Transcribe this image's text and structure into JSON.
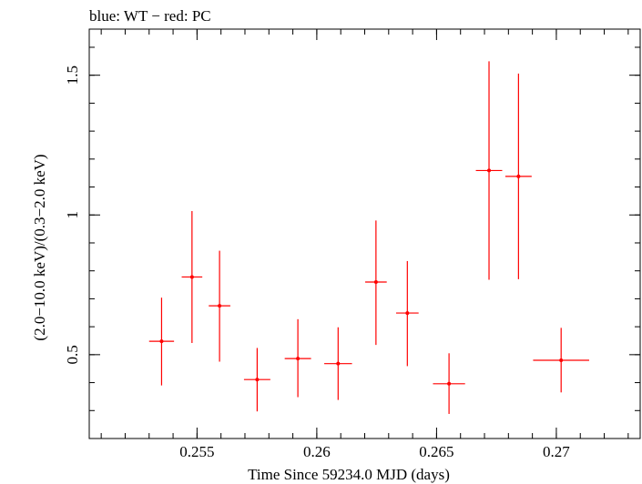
{
  "header": {
    "title": "blue: WT − red: PC"
  },
  "chart_data": {
    "type": "scatter",
    "title": "blue: WT − red: PC",
    "xlabel": "Time Since 59234.0 MJD (days)",
    "ylabel": "(2.0−10.0 keV)/(0.3−2.0 keV)",
    "xlim": [
      0.2505,
      0.2735
    ],
    "ylim": [
      0.2,
      1.665
    ],
    "x_ticks": [
      {
        "value": 0.255,
        "label": "0.255"
      },
      {
        "value": 0.26,
        "label": "0.26"
      },
      {
        "value": 0.265,
        "label": "0.265"
      },
      {
        "value": 0.27,
        "label": "0.27"
      }
    ],
    "y_ticks": [
      {
        "value": 0.5,
        "label": "0.5"
      },
      {
        "value": 1.0,
        "label": "1"
      },
      {
        "value": 1.5,
        "label": "1.5"
      }
    ],
    "grid": false,
    "series": [
      {
        "name": "PC",
        "color": "#ff0000",
        "points": [
          {
            "x": 0.25352,
            "xerr": 0.00052,
            "y": 0.548,
            "ylo": 0.39,
            "yhi": 0.704
          },
          {
            "x": 0.25479,
            "xerr": 0.00043,
            "y": 0.778,
            "ylo": 0.542,
            "yhi": 1.014
          },
          {
            "x": 0.25594,
            "xerr": 0.00045,
            "y": 0.675,
            "ylo": 0.475,
            "yhi": 0.872
          },
          {
            "x": 0.25751,
            "xerr": 0.00055,
            "y": 0.411,
            "ylo": 0.297,
            "yhi": 0.524
          },
          {
            "x": 0.25921,
            "xerr": 0.00055,
            "y": 0.486,
            "ylo": 0.348,
            "yhi": 0.627
          },
          {
            "x": 0.26089,
            "xerr": 0.00058,
            "y": 0.468,
            "ylo": 0.338,
            "yhi": 0.598
          },
          {
            "x": 0.26247,
            "xerr": 0.00045,
            "y": 0.76,
            "ylo": 0.535,
            "yhi": 0.98
          },
          {
            "x": 0.26378,
            "xerr": 0.00047,
            "y": 0.649,
            "ylo": 0.459,
            "yhi": 0.835
          },
          {
            "x": 0.26552,
            "xerr": 0.00067,
            "y": 0.396,
            "ylo": 0.288,
            "yhi": 0.505
          },
          {
            "x": 0.26719,
            "xerr": 0.00055,
            "y": 1.159,
            "ylo": 0.768,
            "yhi": 1.55
          },
          {
            "x": 0.26842,
            "xerr": 0.00055,
            "y": 1.138,
            "ylo": 0.77,
            "yhi": 1.506
          },
          {
            "x": 0.2702,
            "xerr": 0.00117,
            "y": 0.48,
            "ylo": 0.365,
            "yhi": 0.596
          }
        ]
      }
    ]
  }
}
